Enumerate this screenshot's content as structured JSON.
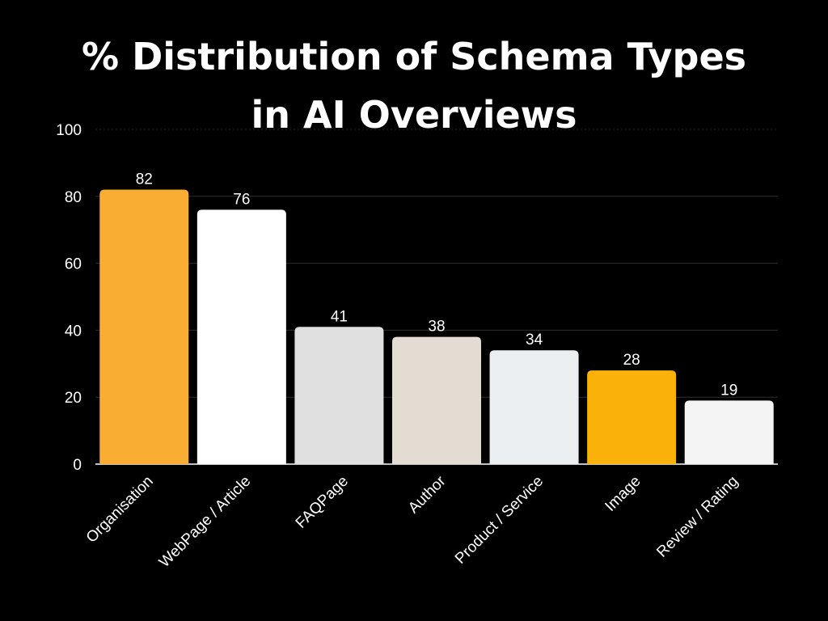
{
  "chart_data": {
    "type": "bar",
    "title_lines": [
      "% Distribution of Schema Types",
      "in AI Overviews"
    ],
    "xlabel": "",
    "ylabel": "",
    "ylim": [
      0,
      100
    ],
    "y_ticks": [
      0,
      20,
      40,
      60,
      80,
      100
    ],
    "grid": true,
    "legend": "none",
    "categories": [
      "Organisation",
      "WebPage / Article",
      "FAQPage",
      "Author",
      "Product / Service",
      "Image",
      "Review / Rating"
    ],
    "values": [
      82,
      76,
      41,
      38,
      34,
      28,
      19
    ],
    "colors": [
      "#f9ad32",
      "#ffffff",
      "#e0e0e0",
      "#e3dcd2",
      "#eceff2",
      "#fab20b",
      "#f4f4f4"
    ]
  }
}
